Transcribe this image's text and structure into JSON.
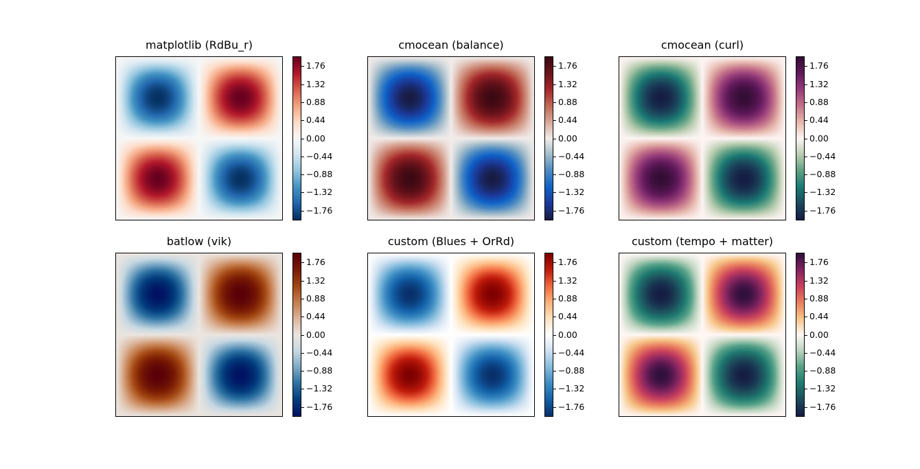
{
  "chart_data": [
    {
      "type": "heatmap",
      "title": "matplotlib (RdBu_r)",
      "vmin": -2,
      "vmax": 2,
      "peak_values": [
        [
          -2,
          2
        ],
        [
          2,
          -2
        ]
      ],
      "colorbar_ticks": [
        "1.76",
        "1.32",
        "0.88",
        "0.44",
        "0.00",
        "−0.44",
        "−0.88",
        "−1.32",
        "−1.76"
      ],
      "colormap": [
        "#053061",
        "#2166ac",
        "#4393c3",
        "#92c5de",
        "#d1e5f0",
        "#f7f7f7",
        "#fddbc7",
        "#f4a582",
        "#d6604d",
        "#b2182b",
        "#67001f"
      ]
    },
    {
      "type": "heatmap",
      "title": "cmocean (balance)",
      "vmin": -2,
      "vmax": 2,
      "peak_values": [
        [
          -2,
          2
        ],
        [
          2,
          -2
        ]
      ],
      "colorbar_ticks": [
        "1.76",
        "1.32",
        "0.88",
        "0.44",
        "0.00",
        "−0.44",
        "−0.88",
        "−1.32",
        "−1.76"
      ],
      "colormap": [
        "#181c43",
        "#1b3a9a",
        "#0f62c8",
        "#4d8bc2",
        "#a3bccb",
        "#f1ecea",
        "#d9a99a",
        "#c26a58",
        "#a3282a",
        "#6e141c",
        "#3c0912"
      ]
    },
    {
      "type": "heatmap",
      "title": "cmocean (curl)",
      "vmin": -2,
      "vmax": 2,
      "peak_values": [
        [
          -2,
          2
        ],
        [
          2,
          -2
        ]
      ],
      "colorbar_ticks": [
        "1.76",
        "1.32",
        "0.88",
        "0.44",
        "0.00",
        "−0.44",
        "−0.88",
        "−1.32",
        "−1.76"
      ],
      "colormap": [
        "#151d44",
        "#1b4a5e",
        "#1b7a74",
        "#5fa185",
        "#b9cdb0",
        "#fdf5f3",
        "#e6b7ad",
        "#c5738a",
        "#973d7a",
        "#621a5c",
        "#340d35"
      ]
    },
    {
      "type": "heatmap",
      "title": "batlow (vik)",
      "vmin": -2,
      "vmax": 2,
      "peak_values": [
        [
          -2,
          2
        ],
        [
          2,
          -2
        ]
      ],
      "colorbar_ticks": [
        "1.76",
        "1.32",
        "0.88",
        "0.44",
        "0.00",
        "−0.44",
        "−0.88",
        "−1.32",
        "−1.76"
      ],
      "colormap": [
        "#001261",
        "#023d7e",
        "#2d72a3",
        "#7eaac7",
        "#c6d8e2",
        "#ebe5e0",
        "#dcb59a",
        "#c67e4e",
        "#a24612",
        "#7a1c04",
        "#590008"
      ]
    },
    {
      "type": "heatmap",
      "title": "custom (Blues + OrRd)",
      "vmin": -2,
      "vmax": 2,
      "peak_values": [
        [
          -2,
          2
        ],
        [
          2,
          -2
        ]
      ],
      "colorbar_ticks": [
        "1.76",
        "1.32",
        "0.88",
        "0.44",
        "0.00",
        "−0.44",
        "−0.88",
        "−1.32",
        "−1.76"
      ],
      "colormap": [
        "#08306b",
        "#1361a8",
        "#3d8dc4",
        "#85bcdc",
        "#cfe1f2",
        "#ffffff",
        "#fee3c0",
        "#fdb27b",
        "#f0683f",
        "#c01c0c",
        "#7f0000"
      ]
    },
    {
      "type": "heatmap",
      "title": "custom (tempo + matter)",
      "vmin": -2,
      "vmax": 2,
      "peak_values": [
        [
          -2,
          2
        ],
        [
          2,
          -2
        ]
      ],
      "colorbar_ticks": [
        "1.76",
        "1.32",
        "0.88",
        "0.44",
        "0.00",
        "−0.44",
        "−0.88",
        "−1.32",
        "−1.76"
      ],
      "colormap": [
        "#151d44",
        "#1d4d5c",
        "#1f7a70",
        "#55a188",
        "#b9d2bd",
        "#fff8f5",
        "#f7c587",
        "#e97e5f",
        "#c8405d",
        "#842460",
        "#2f0f3d"
      ]
    }
  ]
}
